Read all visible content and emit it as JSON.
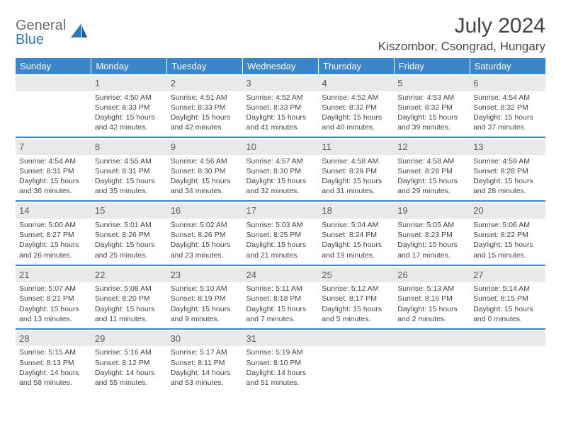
{
  "brand": {
    "gray": "General",
    "blue": "Blue"
  },
  "title": "July 2024",
  "location": "Kiszombor, Csongrad, Hungary",
  "colors": {
    "header_bg": "#3a86c8",
    "header_text": "#ffffff",
    "daynum_bg": "#e9e9e9",
    "body_text": "#444444",
    "rule": "#3a86c8"
  },
  "weekdays": [
    "Sunday",
    "Monday",
    "Tuesday",
    "Wednesday",
    "Thursday",
    "Friday",
    "Saturday"
  ],
  "weeks": [
    [
      null,
      {
        "n": "1",
        "sr": "4:50 AM",
        "ss": "8:33 PM",
        "dl": "15 hours and 42 minutes."
      },
      {
        "n": "2",
        "sr": "4:51 AM",
        "ss": "8:33 PM",
        "dl": "15 hours and 42 minutes."
      },
      {
        "n": "3",
        "sr": "4:52 AM",
        "ss": "8:33 PM",
        "dl": "15 hours and 41 minutes."
      },
      {
        "n": "4",
        "sr": "4:52 AM",
        "ss": "8:32 PM",
        "dl": "15 hours and 40 minutes."
      },
      {
        "n": "5",
        "sr": "4:53 AM",
        "ss": "8:32 PM",
        "dl": "15 hours and 39 minutes."
      },
      {
        "n": "6",
        "sr": "4:54 AM",
        "ss": "8:32 PM",
        "dl": "15 hours and 37 minutes."
      }
    ],
    [
      {
        "n": "7",
        "sr": "4:54 AM",
        "ss": "8:31 PM",
        "dl": "15 hours and 36 minutes."
      },
      {
        "n": "8",
        "sr": "4:55 AM",
        "ss": "8:31 PM",
        "dl": "15 hours and 35 minutes."
      },
      {
        "n": "9",
        "sr": "4:56 AM",
        "ss": "8:30 PM",
        "dl": "15 hours and 34 minutes."
      },
      {
        "n": "10",
        "sr": "4:57 AM",
        "ss": "8:30 PM",
        "dl": "15 hours and 32 minutes."
      },
      {
        "n": "11",
        "sr": "4:58 AM",
        "ss": "8:29 PM",
        "dl": "15 hours and 31 minutes."
      },
      {
        "n": "12",
        "sr": "4:58 AM",
        "ss": "8:28 PM",
        "dl": "15 hours and 29 minutes."
      },
      {
        "n": "13",
        "sr": "4:59 AM",
        "ss": "8:28 PM",
        "dl": "15 hours and 28 minutes."
      }
    ],
    [
      {
        "n": "14",
        "sr": "5:00 AM",
        "ss": "8:27 PM",
        "dl": "15 hours and 26 minutes."
      },
      {
        "n": "15",
        "sr": "5:01 AM",
        "ss": "8:26 PM",
        "dl": "15 hours and 25 minutes."
      },
      {
        "n": "16",
        "sr": "5:02 AM",
        "ss": "8:26 PM",
        "dl": "15 hours and 23 minutes."
      },
      {
        "n": "17",
        "sr": "5:03 AM",
        "ss": "8:25 PM",
        "dl": "15 hours and 21 minutes."
      },
      {
        "n": "18",
        "sr": "5:04 AM",
        "ss": "8:24 PM",
        "dl": "15 hours and 19 minutes."
      },
      {
        "n": "19",
        "sr": "5:05 AM",
        "ss": "8:23 PM",
        "dl": "15 hours and 17 minutes."
      },
      {
        "n": "20",
        "sr": "5:06 AM",
        "ss": "8:22 PM",
        "dl": "15 hours and 15 minutes."
      }
    ],
    [
      {
        "n": "21",
        "sr": "5:07 AM",
        "ss": "8:21 PM",
        "dl": "15 hours and 13 minutes."
      },
      {
        "n": "22",
        "sr": "5:08 AM",
        "ss": "8:20 PM",
        "dl": "15 hours and 11 minutes."
      },
      {
        "n": "23",
        "sr": "5:10 AM",
        "ss": "8:19 PM",
        "dl": "15 hours and 9 minutes."
      },
      {
        "n": "24",
        "sr": "5:11 AM",
        "ss": "8:18 PM",
        "dl": "15 hours and 7 minutes."
      },
      {
        "n": "25",
        "sr": "5:12 AM",
        "ss": "8:17 PM",
        "dl": "15 hours and 5 minutes."
      },
      {
        "n": "26",
        "sr": "5:13 AM",
        "ss": "8:16 PM",
        "dl": "15 hours and 2 minutes."
      },
      {
        "n": "27",
        "sr": "5:14 AM",
        "ss": "8:15 PM",
        "dl": "15 hours and 0 minutes."
      }
    ],
    [
      {
        "n": "28",
        "sr": "5:15 AM",
        "ss": "8:13 PM",
        "dl": "14 hours and 58 minutes."
      },
      {
        "n": "29",
        "sr": "5:16 AM",
        "ss": "8:12 PM",
        "dl": "14 hours and 55 minutes."
      },
      {
        "n": "30",
        "sr": "5:17 AM",
        "ss": "8:11 PM",
        "dl": "14 hours and 53 minutes."
      },
      {
        "n": "31",
        "sr": "5:19 AM",
        "ss": "8:10 PM",
        "dl": "14 hours and 51 minutes."
      },
      null,
      null,
      null
    ]
  ],
  "labels": {
    "sunrise_prefix": "Sunrise: ",
    "sunset_prefix": "Sunset: ",
    "daylight_prefix": "Daylight: "
  }
}
